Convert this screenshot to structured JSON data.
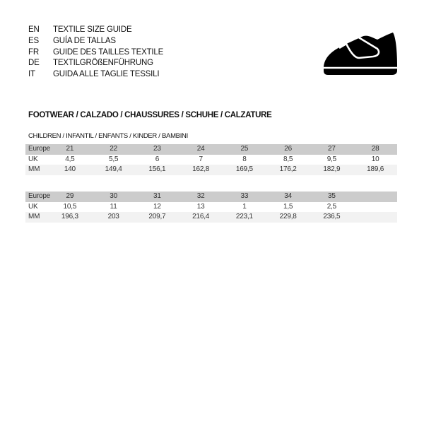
{
  "languages": [
    {
      "code": "EN",
      "label": "TEXTILE SIZE GUIDE"
    },
    {
      "code": "ES",
      "label": "GUÍA DE TALLAS"
    },
    {
      "code": "FR",
      "label": "GUIDE DES TAILLES TEXTILE"
    },
    {
      "code": "DE",
      "label": "TEXTILGRÖßENFÜHRUNG"
    },
    {
      "code": "IT",
      "label": "GUIDA ALLE TAGLIE TESSILI"
    }
  ],
  "icon": "shoe-icon",
  "section_title": "FOOTWEAR / CALZADO / CHAUSSURES / SCHUHE / CALZATURE",
  "sub_title": "CHILDREN / INFANTIL / ENFANTS / KINDER / BAMBINI",
  "tables": [
    {
      "rows": [
        {
          "label": "Europe",
          "values": [
            "21",
            "22",
            "23",
            "24",
            "25",
            "26",
            "27",
            "28"
          ]
        },
        {
          "label": "UK",
          "values": [
            "4,5",
            "5,5",
            "6",
            "7",
            "8",
            "8,5",
            "9,5",
            "10"
          ]
        },
        {
          "label": "MM",
          "values": [
            "140",
            "149,4",
            "156,1",
            "162,8",
            "169,5",
            "176,2",
            "182,9",
            "189,6"
          ]
        }
      ]
    },
    {
      "rows": [
        {
          "label": "Europe",
          "values": [
            "29",
            "30",
            "31",
            "32",
            "33",
            "34",
            "35",
            ""
          ]
        },
        {
          "label": "UK",
          "values": [
            "10,5",
            "11",
            "12",
            "13",
            "1",
            "1,5",
            "2,5",
            ""
          ]
        },
        {
          "label": "MM",
          "values": [
            "196,3",
            "203",
            "209,7",
            "216,4",
            "223,1",
            "229,8",
            "236,5",
            ""
          ]
        }
      ]
    }
  ]
}
